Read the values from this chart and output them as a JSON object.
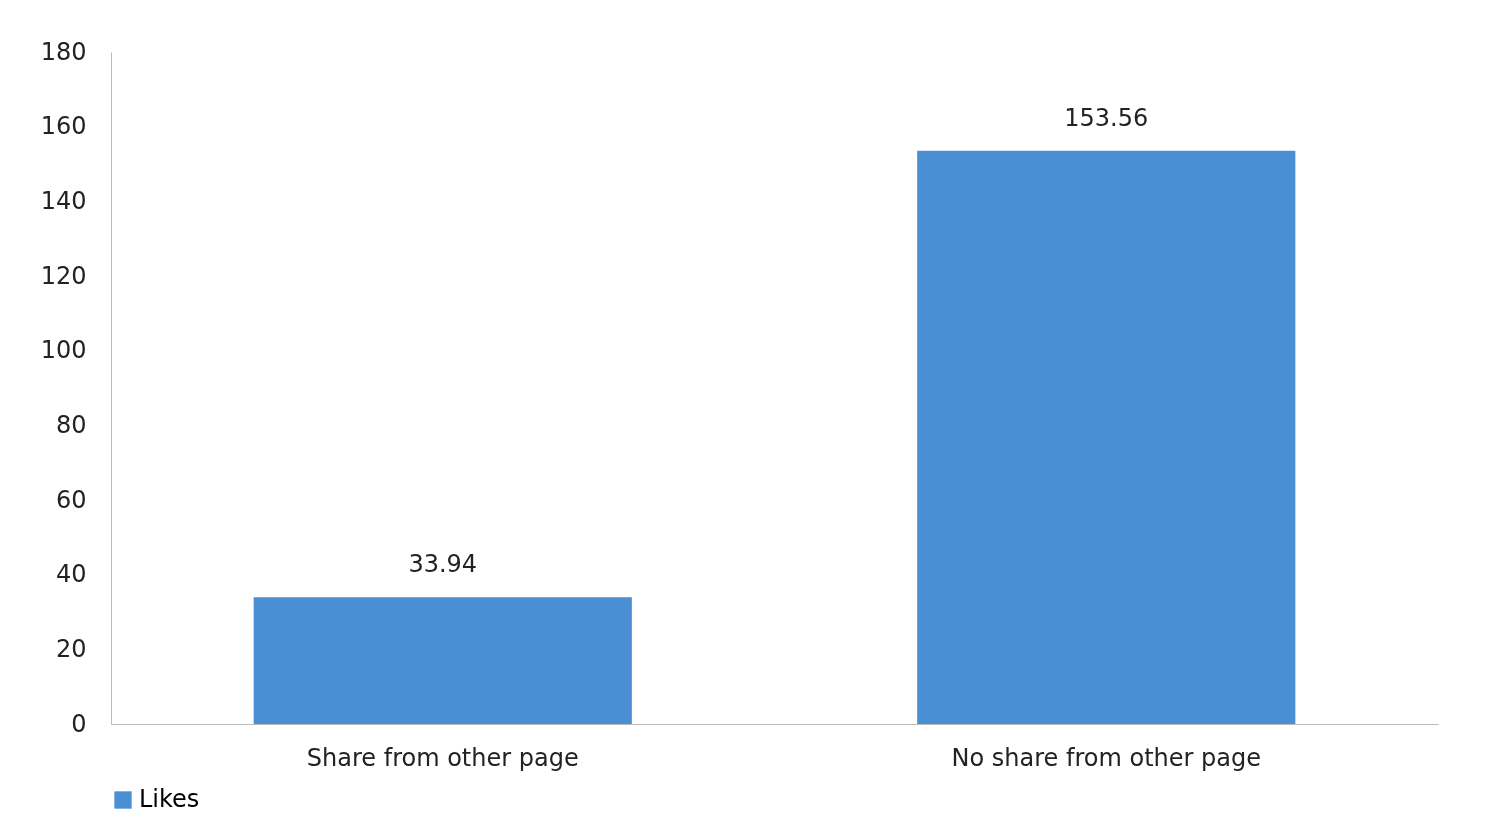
{
  "chart_data": {
    "type": "bar",
    "categories": [
      "Share from other page",
      "No share from other page"
    ],
    "series": [
      {
        "name": "Likes",
        "color": "#4a8fd4",
        "values": [
          33.94,
          153.56
        ]
      }
    ],
    "ylim": [
      0,
      180
    ],
    "yticks": [
      0,
      20,
      40,
      60,
      80,
      100,
      120,
      140,
      160,
      180
    ],
    "grid": false,
    "data_labels": true,
    "legend": "bottom"
  }
}
